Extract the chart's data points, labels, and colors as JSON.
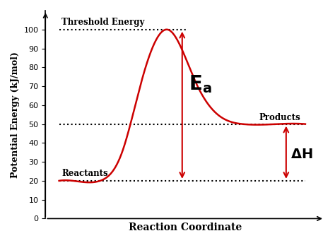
{
  "xlabel": "Reaction Coordinate",
  "ylabel": "Potential Energy (kJ/mol)",
  "background_color": "#ffffff",
  "curve_color": "#cc0000",
  "curve_linewidth": 1.8,
  "reactant_energy": 20,
  "product_energy": 50,
  "peak_energy": 100,
  "ylim": [
    0,
    110
  ],
  "yticks": [
    0,
    10,
    20,
    30,
    40,
    50,
    60,
    70,
    80,
    90,
    100
  ],
  "dotted_color": "#000000",
  "arrow_color": "#cc0000",
  "label_reactants": "Reactants",
  "label_products": "Products",
  "label_threshold": "Threshold Energy",
  "label_dH": "ΔH",
  "text_color": "#000000",
  "font_family": "DejaVu Serif"
}
